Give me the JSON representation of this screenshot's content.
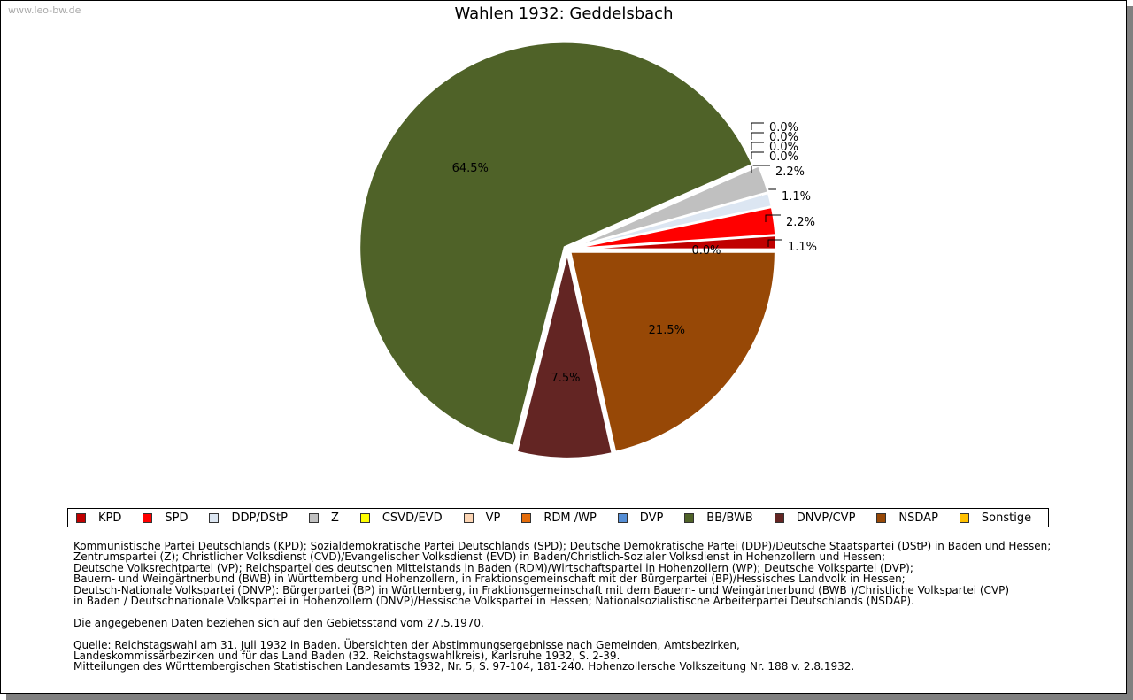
{
  "watermark": "www.leo-bw.de",
  "chart_data": {
    "type": "pie",
    "title": "Wahlen 1932: Geddelsbach",
    "legend_position": "bottom",
    "slices": [
      {
        "name": "KPD",
        "value": 1.1,
        "label": "1.1%",
        "color": "#c00000"
      },
      {
        "name": "SPD",
        "value": 2.2,
        "label": "2.2%",
        "color": "#ff0000"
      },
      {
        "name": "DDP/DStP",
        "value": 1.1,
        "label": "1.1%",
        "color": "#dce6f2"
      },
      {
        "name": "Z",
        "value": 2.2,
        "label": "2.2%",
        "color": "#c0c0c0"
      },
      {
        "name": "CSVD/EVD",
        "value": 0.0,
        "label": "0.0%",
        "color": "#ffff00"
      },
      {
        "name": "VP",
        "value": 0.0,
        "label": "0.0%",
        "color": "#fcd5b4"
      },
      {
        "name": "RDM /WP",
        "value": 0.0,
        "label": "0.0%",
        "color": "#e46c0a"
      },
      {
        "name": "DVP",
        "value": 0.0,
        "label": "0.0%",
        "color": "#558ed5"
      },
      {
        "name": "BB/BWB",
        "value": 64.5,
        "label": "64.5%",
        "color": "#4f6228"
      },
      {
        "name": "DNVP/CVP",
        "value": 7.5,
        "label": "7.5%",
        "color": "#632523"
      },
      {
        "name": "NSDAP",
        "value": 21.5,
        "label": "21.5%",
        "color": "#974806"
      },
      {
        "name": "Sonstige",
        "value": 0.0,
        "label": "0.0%",
        "color": "#ffc000"
      }
    ]
  },
  "notes": [
    "Kommunistische Partei Deutschlands (KPD); Sozialdemokratische Partei Deutschlands (SPD); Deutsche Demokratische Partei (DDP)/Deutsche Staatspartei (DStP) in Baden und Hessen;",
    "Zentrumspartei (Z); Christlicher Volksdienst (CVD)/Evangelischer Volksdienst (EVD) in Baden/Christlich-Sozialer Volksdienst in Hohenzollern und Hessen;",
    "Deutsche Volksrechtpartei (VP); Reichspartei des deutschen Mittelstands in Baden (RDM)/Wirtschaftspartei in Hohenzollern (WP); Deutsche Volkspartei (DVP);",
    "Bauern- und Weingärtnerbund (BWB) in Württemberg und Hohenzollern, in Fraktionsgemeinschaft mit der Bürgerpartei (BP)/Hessisches Landvolk in Hessen;",
    "Deutsch-Nationale Volkspartei (DNVP): Bürgerpartei (BP) in Württemberg, in Fraktionsgemeinschaft mit dem Bauern- und Weingärtnerbund (BWB )/Christliche Volkspartei (CVP)",
    "in Baden / Deutschnationale Volkspartei in Hohenzollern (DNVP)/Hessische Volkspartei in Hessen; Nationalsozialistische Arbeiterpartei Deutschlands (NSDAP).",
    "",
    "Die angegebenen Daten beziehen sich auf den Gebietsstand vom 27.5.1970.",
    "",
    "Quelle: Reichstagswahl am 31. Juli 1932 in Baden. Übersichten der Abstimmungsergebnisse nach Gemeinden, Amtsbezirken,",
    "Landeskommissärbezirken und für das Land Baden (32. Reichstagswahlkreis), Karlsruhe 1932, S. 2-39.",
    "Mitteilungen des Württembergischen Statistischen Landesamts 1932, Nr. 5, S. 97-104, 181-240. Hohenzollersche Volkszeitung Nr. 188 v. 2.8.1932."
  ]
}
